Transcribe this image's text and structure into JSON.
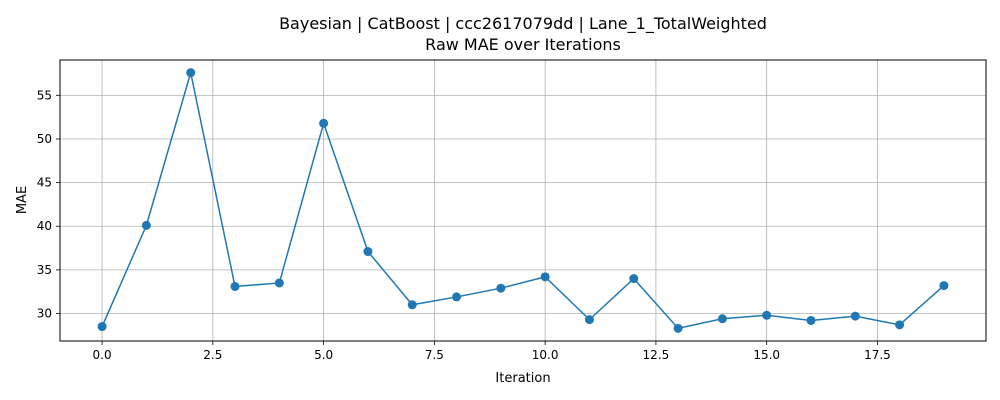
{
  "chart_data": {
    "type": "line",
    "title": "Bayesian | CatBoost | ccc2617079dd | Lane_1_TotalWeighted",
    "subtitle": "Raw MAE over Iterations",
    "xlabel": "Iteration",
    "ylabel": "MAE",
    "xlim": [
      -0.95,
      19.95
    ],
    "ylim": [
      26.85,
      59.05
    ],
    "xticks": [
      0.0,
      2.5,
      5.0,
      7.5,
      10.0,
      12.5,
      15.0,
      17.5
    ],
    "xtick_labels": [
      "0.0",
      "2.5",
      "5.0",
      "7.5",
      "10.0",
      "12.5",
      "15.0",
      "17.5"
    ],
    "yticks": [
      30,
      35,
      40,
      45,
      50,
      55
    ],
    "ytick_labels": [
      "30",
      "35",
      "40",
      "45",
      "50",
      "55"
    ],
    "grid": true,
    "series": [
      {
        "x": [
          0,
          1,
          2,
          3,
          4,
          5,
          6,
          7,
          8,
          9,
          10,
          11,
          12,
          13,
          14,
          15,
          16,
          17,
          18,
          19
        ],
        "values": [
          28.5,
          40.1,
          57.6,
          33.1,
          33.5,
          51.8,
          37.1,
          31.0,
          31.9,
          32.9,
          34.2,
          29.3,
          34.0,
          28.3,
          29.4,
          29.8,
          29.2,
          29.7,
          28.7,
          33.2
        ],
        "color": "#1f77b4",
        "marker": "circle"
      }
    ]
  }
}
